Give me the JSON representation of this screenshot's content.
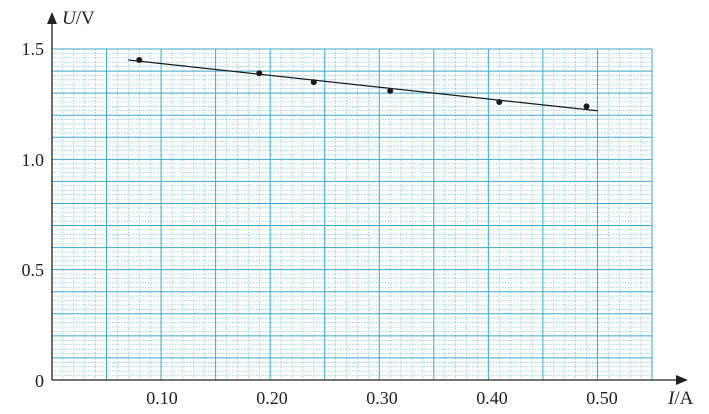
{
  "chart_data": {
    "type": "scatter",
    "x_axis": {
      "variable": "I",
      "separator": "/",
      "unit": "A",
      "range": [
        0,
        0.55
      ],
      "ticks": [
        "0.10",
        "0.20",
        "0.30",
        "0.40",
        "0.50"
      ]
    },
    "y_axis": {
      "variable": "U",
      "separator": "/",
      "unit": "V",
      "range": [
        0,
        1.5
      ],
      "ticks": [
        "0",
        "0.5",
        "1.0",
        "1.5"
      ]
    },
    "points": [
      {
        "x": 0.08,
        "y": 1.45
      },
      {
        "x": 0.19,
        "y": 1.39
      },
      {
        "x": 0.24,
        "y": 1.35
      },
      {
        "x": 0.31,
        "y": 1.31
      },
      {
        "x": 0.41,
        "y": 1.26
      },
      {
        "x": 0.49,
        "y": 1.24
      }
    ],
    "fit_line": {
      "x": [
        0.07,
        0.5
      ],
      "y": [
        1.45,
        1.22
      ]
    },
    "grid": true,
    "colors": {
      "grid_major": "#3aa8c8",
      "grid_minor": "#7cc6dc",
      "axis": "#222222",
      "points": "#1a1a1a",
      "line": "#1a1a1a"
    }
  }
}
